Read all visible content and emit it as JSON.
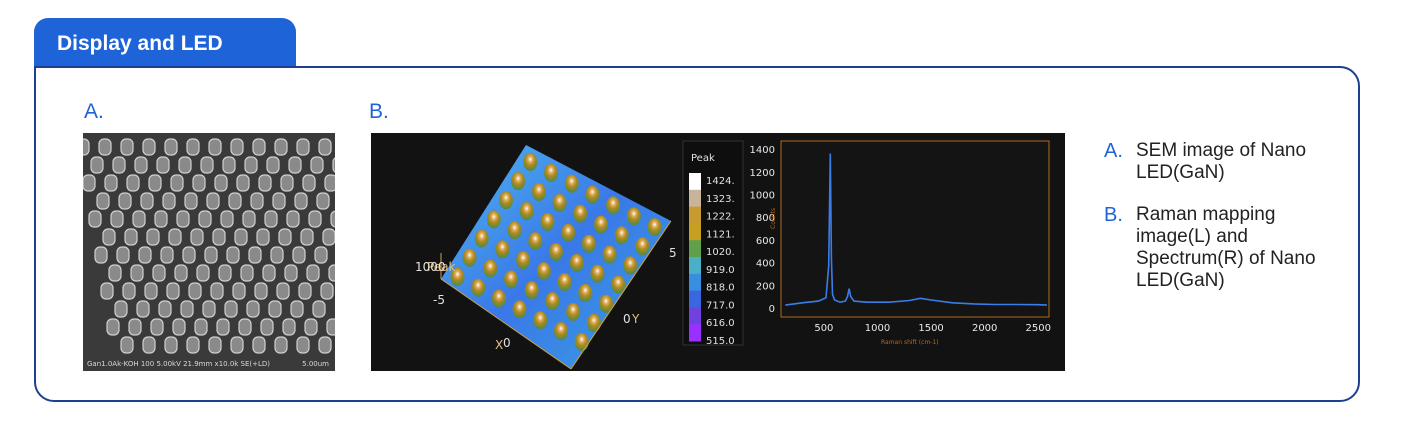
{
  "section_title": "Display and LED",
  "panel_a": {
    "label": "A.",
    "sem_caption_left": "Gan1.0Ak-KOH 100 5.00kV 21.9mm x10.0k SE(+LD)",
    "sem_caption_right": "5.00um"
  },
  "panel_b": {
    "label": "B.",
    "map": {
      "axis_z_label": "Peak",
      "z_tick": "1000",
      "x_axis_label": "X",
      "y_axis_label": "Y",
      "x_ticks": [
        "-5",
        "0"
      ],
      "y_ticks": [
        "0",
        "5"
      ]
    },
    "colorbar": {
      "title": "Peak",
      "ticks": [
        "1424.",
        "1323.",
        "1222.",
        "1121.",
        "1020.",
        "919.0",
        "818.0",
        "717.0",
        "616.0",
        "515.0"
      ],
      "colors": [
        "#ffffff",
        "#c8b49a",
        "#c89a30",
        "#c8a020",
        "#5fa04a",
        "#4ab0c8",
        "#3a8ee0",
        "#3a66e0",
        "#7040e0",
        "#9a30ff"
      ]
    },
    "spectrum": {
      "ylabel": "Counts",
      "xlabel": "Raman shift (cm-1)",
      "line_color": "#3a7de8"
    }
  },
  "captions": [
    {
      "letter": "A.",
      "text": "SEM image of Nano LED(GaN)"
    },
    {
      "letter": "B.",
      "text": "Raman mapping image(L) and Spectrum(R) of Nano LED(GaN)"
    }
  ],
  "chart_data": {
    "type": "line",
    "xlabel": "Raman shift (cm-1)",
    "ylabel": "Counts",
    "xlim": [
      100,
      2600
    ],
    "ylim": [
      -70,
      1480
    ],
    "x_ticks": [
      500,
      1000,
      1500,
      2000,
      2500
    ],
    "y_ticks": [
      0,
      200,
      400,
      600,
      800,
      1000,
      1200,
      1400
    ],
    "series": [
      {
        "x": [
          140,
          300,
          450,
          520,
          545,
          560,
          570,
          580,
          600,
          650,
          700,
          720,
          735,
          750,
          780,
          900,
          1100,
          1300,
          1400,
          1500,
          1700,
          1900,
          2100,
          2300,
          2500,
          2580
        ],
        "values": [
          35,
          55,
          70,
          100,
          380,
          1370,
          450,
          130,
          80,
          60,
          70,
          110,
          180,
          110,
          70,
          60,
          60,
          75,
          95,
          80,
          55,
          45,
          40,
          40,
          38,
          35
        ]
      }
    ]
  }
}
